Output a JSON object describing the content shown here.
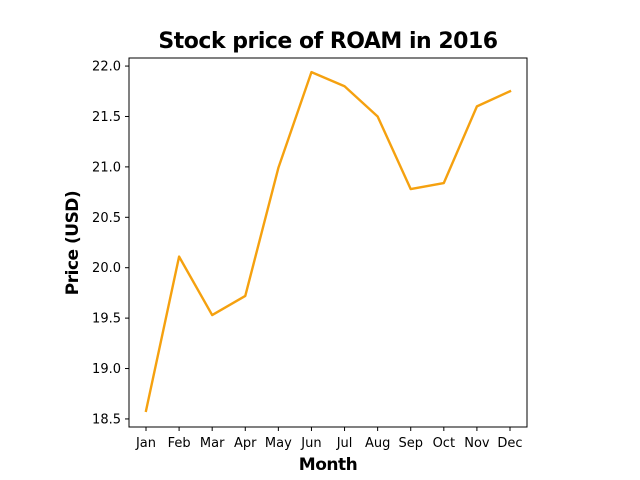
{
  "chart_data": {
    "type": "line",
    "title": "Stock price of ROAM in 2016",
    "xlabel": "Month",
    "ylabel": "Price (USD)",
    "categories": [
      "Jan",
      "Feb",
      "Mar",
      "Apr",
      "May",
      "Jun",
      "Jul",
      "Aug",
      "Sep",
      "Oct",
      "Nov",
      "Dec"
    ],
    "series": [
      {
        "values": [
          18.58,
          20.11,
          19.53,
          19.72,
          20.99,
          21.94,
          21.8,
          21.5,
          20.78,
          20.84,
          21.6,
          21.75
        ],
        "color": "#f5a10f"
      }
    ],
    "yticks": [
      "18.5",
      "19.0",
      "19.5",
      "20.0",
      "20.5",
      "21.0",
      "21.5",
      "22.0"
    ],
    "ylim": [
      18.42,
      22.08
    ],
    "grid": false,
    "legend": "none"
  }
}
